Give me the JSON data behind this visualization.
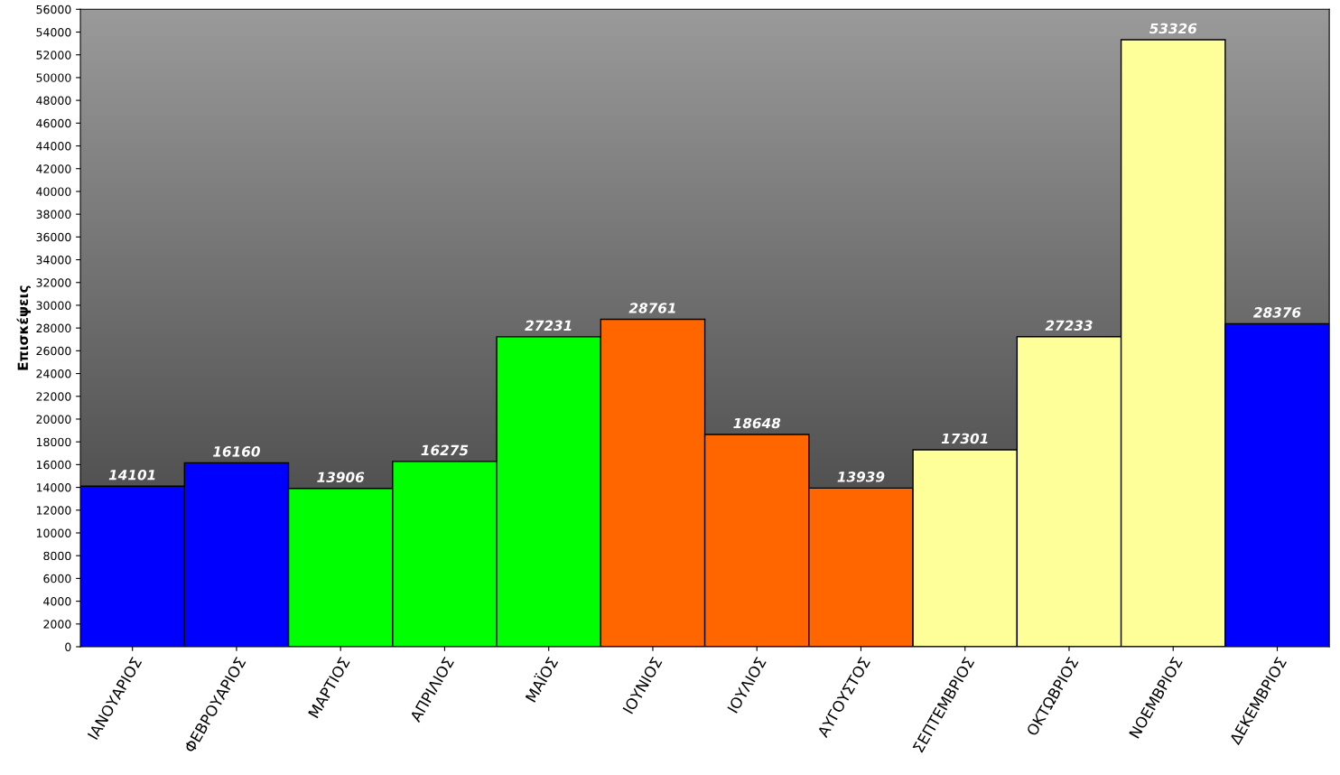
{
  "chart_data": {
    "type": "bar",
    "ylabel": "Επισκέψεις",
    "categories": [
      "ΙΑΝΟΥΑΡΙΟΣ",
      "ΦΕΒΡΟΥΑΡΙΟΣ",
      "ΜΑΡΤΙΟΣ",
      "ΑΠΡΙΛΙΟΣ",
      "ΜΑΪΟΣ",
      "ΙΟΥΝΙΟΣ",
      "ΙΟΥΛΙΟΣ",
      "ΑΥΓΟΥΣΤΟΣ",
      "ΣΕΠΤΕΜΒΡΙΟΣ",
      "ΟΚΤΩΒΡΙΟΣ",
      "ΝΟΕΜΒΡΙΟΣ",
      "ΔΕΚΕΜΒΡΙΟΣ"
    ],
    "values": [
      14101,
      16160,
      13906,
      16275,
      27231,
      28761,
      18648,
      13939,
      17301,
      27233,
      53326,
      28376
    ],
    "colors": [
      "#0000ff",
      "#0000ff",
      "#00ff00",
      "#00ff00",
      "#00ff00",
      "#ff6600",
      "#ff6600",
      "#ff6600",
      "#ffff99",
      "#ffff99",
      "#ffff99",
      "#0000ff"
    ],
    "ylim": [
      0,
      56000
    ],
    "yticks": [
      0,
      2000,
      4000,
      6000,
      8000,
      10000,
      12000,
      14000,
      16000,
      18000,
      20000,
      22000,
      24000,
      26000,
      28000,
      30000,
      32000,
      34000,
      36000,
      38000,
      40000,
      42000,
      44000,
      46000,
      48000,
      50000,
      52000,
      54000,
      56000
    ],
    "data_labels": true,
    "grid": false,
    "legend": false
  }
}
